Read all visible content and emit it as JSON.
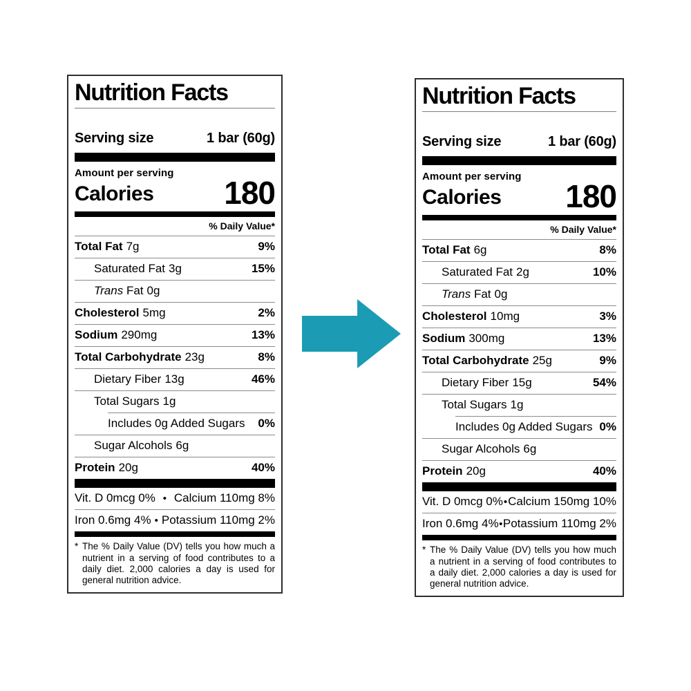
{
  "canvas": {
    "background": "#ffffff"
  },
  "arrow": {
    "direction": "right",
    "color": "#1b9bb4"
  },
  "labels": {
    "before": {
      "title": "Nutrition Facts",
      "serving": {
        "label": "Serving size",
        "value": "1 bar (60g)"
      },
      "amount_per_serving": "Amount per serving",
      "calories": {
        "label": "Calories",
        "value": "180"
      },
      "daily_value_header": "% Daily Value*",
      "nutrients": [
        {
          "name": "Total Fat",
          "amount": "7g",
          "dv": "9%",
          "level": 0,
          "major": true
        },
        {
          "name": "Saturated Fat",
          "amount": "3g",
          "dv": "15%",
          "level": 1
        },
        {
          "italic": "Trans",
          "name": "Fat",
          "amount": "0g",
          "dv": "",
          "level": 1
        },
        {
          "name": "Cholesterol",
          "amount": "5mg",
          "dv": "2%",
          "level": 0,
          "major": true
        },
        {
          "name": "Sodium",
          "amount": "290mg",
          "dv": "13%",
          "level": 0,
          "major": true
        },
        {
          "name": "Total Carbohydrate",
          "amount": "23g",
          "dv": "8%",
          "level": 0,
          "major": true
        },
        {
          "name": "Dietary Fiber",
          "amount": "13g",
          "dv": "46%",
          "level": 1
        },
        {
          "name": "Total Sugars",
          "amount": "1g",
          "dv": "",
          "level": 1
        },
        {
          "name": "Includes 0g Added Sugars",
          "amount": "",
          "dv": "0%",
          "level": 2,
          "divider_indented": true
        },
        {
          "name": "Sugar Alcohols",
          "amount": "6g",
          "dv": "",
          "level": 1
        },
        {
          "name": "Protein",
          "amount": "20g",
          "dv": "40%",
          "level": 0,
          "major": true
        }
      ],
      "micronutrients": [
        {
          "left": "Vit. D 0mcg 0%",
          "bullet": "•",
          "right": "Calcium 110mg 8%"
        },
        {
          "left": "Iron 0.6mg 4%",
          "bullet": "•",
          "right": "Potassium 110mg 2%"
        }
      ],
      "footnote_marker": "*",
      "footnote": "The % Daily Value (DV) tells you how much a nutrient in a serving of food contributes to a daily diet. 2,000 calories a day is used for general nutrition advice."
    },
    "after": {
      "title": "Nutrition Facts",
      "serving": {
        "label": "Serving size",
        "value": "1 bar (60g)"
      },
      "amount_per_serving": "Amount per serving",
      "calories": {
        "label": "Calories",
        "value": "180"
      },
      "daily_value_header": "% Daily Value*",
      "nutrients": [
        {
          "name": "Total Fat",
          "amount": "6g",
          "dv": "8%",
          "level": 0,
          "major": true
        },
        {
          "name": "Saturated Fat",
          "amount": "2g",
          "dv": "10%",
          "level": 1
        },
        {
          "italic": "Trans",
          "name": "Fat",
          "amount": "0g",
          "dv": "",
          "level": 1
        },
        {
          "name": "Cholesterol",
          "amount": "10mg",
          "dv": "3%",
          "level": 0,
          "major": true
        },
        {
          "name": "Sodium",
          "amount": "300mg",
          "dv": "13%",
          "level": 0,
          "major": true
        },
        {
          "name": "Total Carbohydrate",
          "amount": "25g",
          "dv": "9%",
          "level": 0,
          "major": true
        },
        {
          "name": "Dietary Fiber",
          "amount": "15g",
          "dv": "54%",
          "level": 1
        },
        {
          "name": "Total Sugars",
          "amount": "1g",
          "dv": "",
          "level": 1
        },
        {
          "name": "Includes 0g Added Sugars",
          "amount": "",
          "dv": "0%",
          "level": 2,
          "divider_indented": true
        },
        {
          "name": "Sugar Alcohols",
          "amount": "6g",
          "dv": "",
          "level": 1
        },
        {
          "name": "Protein",
          "amount": "20g",
          "dv": "40%",
          "level": 0,
          "major": true
        }
      ],
      "micronutrients": [
        {
          "left": "Vit. D 0mcg 0%",
          "bullet": "•",
          "right": "Calcium 150mg 10%"
        },
        {
          "left": "Iron 0.6mg 4%",
          "bullet": "•",
          "right": "Potassium 110mg 2%"
        }
      ],
      "footnote_marker": "*",
      "footnote": "The % Daily Value (DV) tells you how much a nutrient in a serving of food contributes to a daily diet. 2,000 calories a day is used for general nutrition advice."
    }
  }
}
